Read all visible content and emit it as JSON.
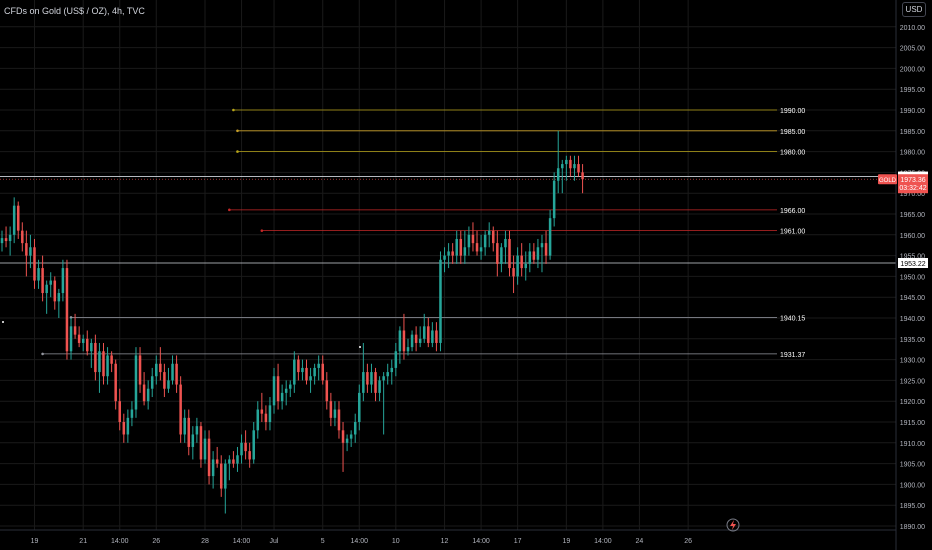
{
  "header": {
    "title": "CFDs on Gold (US$ / OZ), 4h, TVC",
    "currency_button": "USD"
  },
  "colors": {
    "background": "#000000",
    "up": "#26a69a",
    "down": "#ef5350",
    "text": "#d1d4dc",
    "grid": "#1a1a1a",
    "level_line": "#9598a1"
  },
  "chart_data": {
    "type": "candlestick",
    "symbol": "GOLD",
    "timeframe": "4h",
    "y_axis": {
      "range": [
        1888,
        2018
      ],
      "ticks": [
        2010,
        2005,
        2000,
        1995,
        1990,
        1985,
        1980,
        1975,
        1970,
        1965,
        1960,
        1955,
        1950,
        1945,
        1940,
        1935,
        1930,
        1925,
        1920,
        1915,
        1910,
        1905,
        1900,
        1895,
        1890
      ],
      "tick_labels": [
        "2010.00",
        "2005.00",
        "2000.00",
        "1995.00",
        "1990.00",
        "1985.00",
        "1980.00",
        "1975.00",
        "1970.00",
        "1965.00",
        "1960.00",
        "1955.00",
        "1950.00",
        "1945.00",
        "1940.00",
        "1935.00",
        "1930.00",
        "1925.00",
        "1920.00",
        "1915.00",
        "1910.00",
        "1905.00",
        "1900.00",
        "1895.00",
        "1890.00"
      ]
    },
    "x_axis": {
      "bar_count": 182,
      "ticks": [
        {
          "label": "19",
          "bar": 8
        },
        {
          "label": "21",
          "bar": 20
        },
        {
          "label": "14:00",
          "bar": 29
        },
        {
          "label": "26",
          "bar": 38
        },
        {
          "label": "28",
          "bar": 50
        },
        {
          "label": "14:00",
          "bar": 59
        },
        {
          "label": "Jul",
          "bar": 67
        },
        {
          "label": "5",
          "bar": 79
        },
        {
          "label": "14:00",
          "bar": 88
        },
        {
          "label": "10",
          "bar": 97
        },
        {
          "label": "12",
          "bar": 109
        },
        {
          "label": "14:00",
          "bar": 118
        },
        {
          "label": "17",
          "bar": 127
        },
        {
          "label": "19",
          "bar": 139
        },
        {
          "label": "14:00",
          "bar": 148
        },
        {
          "label": "24",
          "bar": 157
        },
        {
          "label": "26",
          "bar": 169
        }
      ]
    },
    "horizontal_levels": [
      {
        "value": 1990.0,
        "label": "1990.00",
        "color": "#b7a51a",
        "from_bar": 57
      },
      {
        "value": 1985.0,
        "label": "1985.00",
        "color": "#c8a028",
        "from_bar": 58
      },
      {
        "value": 1980.0,
        "label": "1980.00",
        "color": "#b7a51a",
        "from_bar": 58
      },
      {
        "value": 1966.0,
        "label": "1966.00",
        "color": "#c62828",
        "from_bar": 56
      },
      {
        "value": 1961.0,
        "label": "1961.00",
        "color": "#c62828",
        "from_bar": 64
      },
      {
        "value": 1940.15,
        "label": "1940.15",
        "color": "#9598a1",
        "from_bar": 17
      },
      {
        "value": 1931.37,
        "label": "1931.37",
        "color": "#9598a1",
        "from_bar": 10
      }
    ],
    "full_lines": [
      {
        "value": 1974.0,
        "label": "1974.00"
      },
      {
        "value": 1953.22,
        "label": "1953.22"
      }
    ],
    "price_badge": {
      "symbol": "GOLD",
      "price": "1973.36",
      "countdown": "03:32:42",
      "color": "#ef5350"
    },
    "candles": [
      [
        1958.0,
        1961.0,
        1956.0,
        1959.2
      ],
      [
        1959.2,
        1962.0,
        1957.0,
        1958.5
      ],
      [
        1958.5,
        1962.0,
        1955.0,
        1960.0
      ],
      [
        1960.0,
        1969.0,
        1958.0,
        1967.0
      ],
      [
        1967.0,
        1968.0,
        1959.0,
        1961.0
      ],
      [
        1961.0,
        1963.0,
        1956.0,
        1958.0
      ],
      [
        1958.0,
        1961.0,
        1950.0,
        1955.0
      ],
      [
        1955.0,
        1960.0,
        1952.0,
        1957.0
      ],
      [
        1957.0,
        1959.0,
        1947.0,
        1949.0
      ],
      [
        1949.0,
        1954.0,
        1947.0,
        1952.0
      ],
      [
        1952.0,
        1955.0,
        1944.0,
        1946.0
      ],
      [
        1946.0,
        1949.0,
        1941.0,
        1948.0
      ],
      [
        1948.0,
        1951.0,
        1945.0,
        1949.0
      ],
      [
        1949.0,
        1950.0,
        1942.0,
        1944.0
      ],
      [
        1944.0,
        1947.0,
        1940.0,
        1946.0
      ],
      [
        1946.0,
        1954.0,
        1944.0,
        1952.0
      ],
      [
        1952.0,
        1954.0,
        1930.0,
        1932.0
      ],
      [
        1932.0,
        1940.0,
        1930.0,
        1938.0
      ],
      [
        1938.0,
        1941.0,
        1935.0,
        1936.0
      ],
      [
        1936.0,
        1938.0,
        1933.0,
        1934.0
      ],
      [
        1934.0,
        1936.0,
        1932.0,
        1935.0
      ],
      [
        1935.0,
        1937.0,
        1931.0,
        1932.0
      ],
      [
        1932.0,
        1935.0,
        1928.0,
        1934.0
      ],
      [
        1934.0,
        1936.0,
        1925.0,
        1927.0
      ],
      [
        1927.0,
        1934.0,
        1922.0,
        1932.0
      ],
      [
        1932.0,
        1934.0,
        1924.0,
        1926.0
      ],
      [
        1926.0,
        1933.0,
        1924.0,
        1931.0
      ],
      [
        1931.0,
        1932.0,
        1927.0,
        1929.0
      ],
      [
        1929.0,
        1930.0,
        1918.0,
        1920.0
      ],
      [
        1920.0,
        1923.0,
        1913.0,
        1915.0
      ],
      [
        1915.0,
        1917.0,
        1910.0,
        1912.0
      ],
      [
        1912.0,
        1918.0,
        1910.0,
        1916.0
      ],
      [
        1916.0,
        1920.0,
        1914.0,
        1918.0
      ],
      [
        1918.0,
        1933.0,
        1916.0,
        1931.0
      ],
      [
        1931.0,
        1933.0,
        1922.0,
        1924.0
      ],
      [
        1924.0,
        1927.0,
        1919.0,
        1920.0
      ],
      [
        1920.0,
        1925.0,
        1918.0,
        1923.0
      ],
      [
        1923.0,
        1928.0,
        1921.0,
        1926.0
      ],
      [
        1926.0,
        1931.0,
        1924.0,
        1929.0
      ],
      [
        1929.0,
        1933.0,
        1925.0,
        1927.0
      ],
      [
        1927.0,
        1929.0,
        1921.0,
        1923.0
      ],
      [
        1923.0,
        1928.0,
        1922.0,
        1925.0
      ],
      [
        1925.0,
        1931.0,
        1924.0,
        1929.0
      ],
      [
        1929.0,
        1931.0,
        1922.0,
        1924.0
      ],
      [
        1924.0,
        1926.0,
        1910.0,
        1912.0
      ],
      [
        1912.0,
        1918.0,
        1910.0,
        1916.0
      ],
      [
        1916.0,
        1918.0,
        1907.0,
        1909.0
      ],
      [
        1909.0,
        1914.0,
        1906.0,
        1912.0
      ],
      [
        1912.0,
        1916.0,
        1910.0,
        1914.0
      ],
      [
        1914.0,
        1915.0,
        1904.0,
        1906.0
      ],
      [
        1906.0,
        1913.0,
        1905.0,
        1911.0
      ],
      [
        1911.0,
        1913.0,
        1900.0,
        1902.0
      ],
      [
        1902.0,
        1908.0,
        1899.0,
        1906.0
      ],
      [
        1906.0,
        1909.0,
        1904.0,
        1905.0
      ],
      [
        1905.0,
        1907.0,
        1897.0,
        1899.0
      ],
      [
        1899.0,
        1906.0,
        1893.0,
        1905.0
      ],
      [
        1905.0,
        1907.0,
        1901.0,
        1906.0
      ],
      [
        1906.0,
        1908.0,
        1904.0,
        1905.0
      ],
      [
        1905.0,
        1909.0,
        1903.0,
        1907.0
      ],
      [
        1907.0,
        1912.0,
        1905.0,
        1910.0
      ],
      [
        1910.0,
        1913.0,
        1906.0,
        1908.0
      ],
      [
        1908.0,
        1910.0,
        1904.0,
        1906.0
      ],
      [
        1906.0,
        1915.0,
        1905.0,
        1913.0
      ],
      [
        1913.0,
        1920.0,
        1911.0,
        1918.0
      ],
      [
        1918.0,
        1922.0,
        1915.0,
        1917.0
      ],
      [
        1917.0,
        1919.0,
        1913.0,
        1915.0
      ],
      [
        1915.0,
        1921.0,
        1913.0,
        1919.0
      ],
      [
        1919.0,
        1928.0,
        1917.0,
        1926.0
      ],
      [
        1926.0,
        1929.0,
        1918.0,
        1920.0
      ],
      [
        1920.0,
        1924.0,
        1918.0,
        1922.0
      ],
      [
        1922.0,
        1925.0,
        1919.0,
        1923.0
      ],
      [
        1923.0,
        1925.0,
        1921.0,
        1924.0
      ],
      [
        1924.0,
        1932.0,
        1922.0,
        1930.0
      ],
      [
        1930.0,
        1931.0,
        1925.0,
        1927.0
      ],
      [
        1927.0,
        1930.0,
        1925.0,
        1928.0
      ],
      [
        1928.0,
        1930.0,
        1924.0,
        1925.0
      ],
      [
        1925.0,
        1928.0,
        1922.0,
        1926.0
      ],
      [
        1926.0,
        1929.0,
        1924.0,
        1928.0
      ],
      [
        1928.0,
        1931.0,
        1925.0,
        1929.0
      ],
      [
        1929.0,
        1931.0,
        1924.0,
        1925.0
      ],
      [
        1925.0,
        1927.0,
        1918.0,
        1920.0
      ],
      [
        1920.0,
        1922.0,
        1914.0,
        1916.0
      ],
      [
        1916.0,
        1920.0,
        1914.0,
        1918.0
      ],
      [
        1918.0,
        1920.0,
        1911.0,
        1913.0
      ],
      [
        1913.0,
        1915.0,
        1903.0,
        1910.0
      ],
      [
        1910.0,
        1912.0,
        1908.0,
        1911.0
      ],
      [
        1911.0,
        1913.0,
        1909.0,
        1912.0
      ],
      [
        1912.0,
        1917.0,
        1910.0,
        1915.0
      ],
      [
        1915.0,
        1924.0,
        1913.0,
        1922.0
      ],
      [
        1922.0,
        1934.0,
        1920.0,
        1927.0
      ],
      [
        1927.0,
        1929.0,
        1922.0,
        1924.0
      ],
      [
        1924.0,
        1929.0,
        1922.0,
        1927.0
      ],
      [
        1927.0,
        1928.0,
        1920.0,
        1922.0
      ],
      [
        1922.0,
        1926.0,
        1920.0,
        1925.0
      ],
      [
        1925.0,
        1927.0,
        1912.0,
        1926.0
      ],
      [
        1926.0,
        1929.0,
        1924.0,
        1927.0
      ],
      [
        1927.0,
        1930.0,
        1924.0,
        1928.0
      ],
      [
        1928.0,
        1934.0,
        1926.0,
        1932.0
      ],
      [
        1932.0,
        1938.0,
        1929.0,
        1937.0
      ],
      [
        1937.0,
        1941.0,
        1930.0,
        1932.0
      ],
      [
        1932.0,
        1935.0,
        1931.0,
        1933.0
      ],
      [
        1933.0,
        1937.0,
        1932.0,
        1936.0
      ],
      [
        1936.0,
        1938.0,
        1932.0,
        1934.0
      ],
      [
        1934.0,
        1938.0,
        1933.0,
        1935.0
      ],
      [
        1935.0,
        1941.0,
        1934.0,
        1938.0
      ],
      [
        1938.0,
        1940.0,
        1933.0,
        1934.0
      ],
      [
        1934.0,
        1939.0,
        1933.0,
        1937.0
      ],
      [
        1937.0,
        1939.0,
        1932.0,
        1934.0
      ],
      [
        1934.0,
        1956.0,
        1932.0,
        1954.0
      ],
      [
        1954.0,
        1957.0,
        1951.0,
        1955.0
      ],
      [
        1955.0,
        1958.0,
        1952.0,
        1956.0
      ],
      [
        1956.0,
        1958.0,
        1953.0,
        1955.0
      ],
      [
        1955.0,
        1961.0,
        1953.0,
        1959.0
      ],
      [
        1959.0,
        1961.0,
        1953.0,
        1955.0
      ],
      [
        1955.0,
        1961.0,
        1953.0,
        1957.0
      ],
      [
        1957.0,
        1962.0,
        1955.0,
        1960.0
      ],
      [
        1960.0,
        1963.0,
        1956.0,
        1958.0
      ],
      [
        1958.0,
        1961.0,
        1955.0,
        1956.0
      ],
      [
        1956.0,
        1960.0,
        1954.0,
        1957.0
      ],
      [
        1957.0,
        1961.0,
        1955.0,
        1960.0
      ],
      [
        1960.0,
        1963.0,
        1957.0,
        1961.0
      ],
      [
        1961.0,
        1962.0,
        1956.0,
        1958.0
      ],
      [
        1958.0,
        1961.0,
        1950.0,
        1953.0
      ],
      [
        1953.0,
        1958.0,
        1951.0,
        1957.0
      ],
      [
        1957.0,
        1961.0,
        1953.0,
        1959.0
      ],
      [
        1959.0,
        1961.0,
        1950.0,
        1952.0
      ],
      [
        1952.0,
        1955.0,
        1946.0,
        1950.0
      ],
      [
        1950.0,
        1957.0,
        1948.0,
        1955.0
      ],
      [
        1955.0,
        1958.0,
        1950.0,
        1952.0
      ],
      [
        1952.0,
        1956.0,
        1949.0,
        1953.0
      ],
      [
        1953.0,
        1958.0,
        1951.0,
        1956.0
      ],
      [
        1956.0,
        1958.0,
        1953.0,
        1954.0
      ],
      [
        1954.0,
        1959.0,
        1952.0,
        1957.0
      ],
      [
        1957.0,
        1960.0,
        1951.0,
        1958.0
      ],
      [
        1958.0,
        1961.0,
        1953.0,
        1955.0
      ],
      [
        1955.0,
        1966.0,
        1954.0,
        1964.0
      ],
      [
        1964.0,
        1975.0,
        1962.0,
        1973.0
      ],
      [
        1973.0,
        1985.0,
        1970.0,
        1976.0
      ],
      [
        1976.0,
        1978.0,
        1970.0,
        1977.0
      ],
      [
        1977.0,
        1979.0,
        1973.0,
        1978.0
      ],
      [
        1978.0,
        1979.0,
        1974.0,
        1976.0
      ],
      [
        1976.0,
        1979.0,
        1973.0,
        1977.0
      ],
      [
        1977.0,
        1979.0,
        1974.0,
        1975.0
      ],
      [
        1975.0,
        1977.0,
        1970.0,
        1973.36
      ]
    ]
  }
}
